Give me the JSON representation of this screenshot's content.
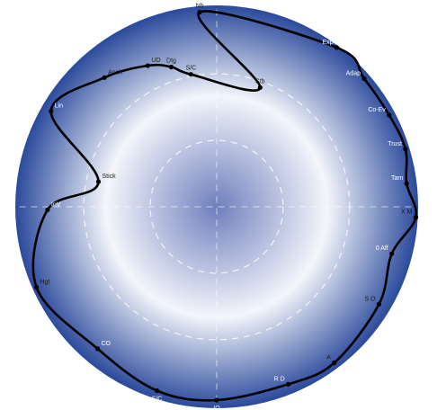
{
  "chart_data": {
    "type": "radar",
    "rlim": [
      0,
      1
    ],
    "grid": true,
    "grid_rings": [
      0.33,
      0.66
    ],
    "colors": {
      "center": "#6f7fbd",
      "mid": "#f4f6fb",
      "edge": "#2b4a9c",
      "line": "#000000",
      "grid": "#ffffff"
    },
    "points": [
      {
        "label": "Nb",
        "angle": -5,
        "r": 0.97,
        "light": false
      },
      {
        "label": "Exp",
        "angle": 37,
        "r": 0.99,
        "light": true
      },
      {
        "label": "Adap",
        "angle": 49,
        "r": 0.97,
        "light": true
      },
      {
        "label": "Co-Ev",
        "angle": 62,
        "r": 0.97,
        "light": true
      },
      {
        "label": "Trust",
        "angle": 73,
        "r": 0.98,
        "light": true
      },
      {
        "label": "Tam",
        "angle": 83,
        "r": 0.95,
        "light": true
      },
      {
        "label": "X M",
        "angle": 93,
        "r": 0.99,
        "light": false
      },
      {
        "label": "0 Aff",
        "angle": 105,
        "r": 0.9,
        "light": true
      },
      {
        "label": "S O",
        "angle": 121,
        "r": 0.94,
        "light": false
      },
      {
        "label": "A",
        "angle": 143,
        "r": 0.97,
        "light": false
      },
      {
        "label": "R D",
        "angle": 158,
        "r": 0.95,
        "light": true
      },
      {
        "label": "IO",
        "angle": 180,
        "r": 0.96,
        "light": true
      },
      {
        "label": "S/C",
        "angle": 198,
        "r": 0.96,
        "light": true
      },
      {
        "label": "CO",
        "angle": 220,
        "r": 0.92,
        "light": true
      },
      {
        "label": "Hgt",
        "angle": 246,
        "r": 0.98,
        "light": false
      },
      {
        "label": "InV",
        "angle": 269,
        "r": 0.84,
        "light": true
      },
      {
        "label": "Stick",
        "angle": 282,
        "r": 0.6,
        "light": false
      },
      {
        "label": "Lin",
        "angle": 300,
        "r": 0.95,
        "light": true
      },
      {
        "label": "Anch",
        "angle": 319,
        "r": 0.85,
        "light": false
      },
      {
        "label": "UD",
        "angle": 334,
        "r": 0.78,
        "light": false
      },
      {
        "label": "Dtg",
        "angle": 342,
        "r": 0.73,
        "light": false
      },
      {
        "label": "S/C",
        "angle": 349,
        "r": 0.67,
        "light": false
      },
      {
        "label": "Stb",
        "angle": 20,
        "r": 0.63,
        "light": false
      }
    ]
  }
}
